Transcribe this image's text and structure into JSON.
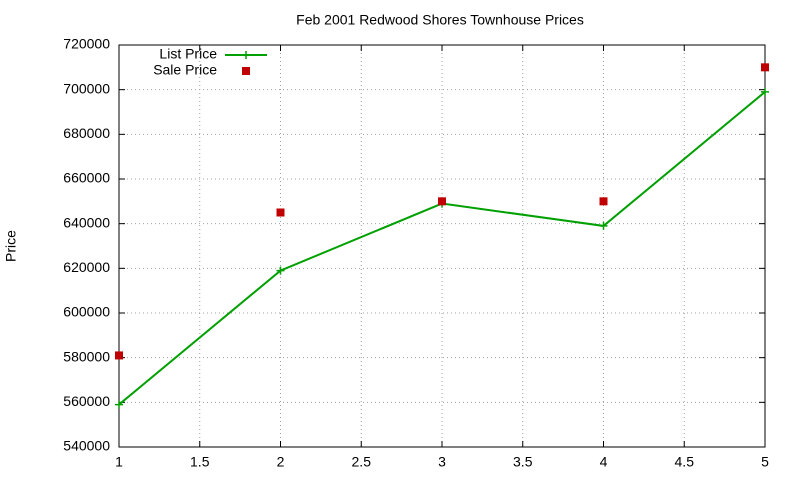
{
  "chart_data": {
    "type": "line",
    "title": "Feb 2001 Redwood Shores Townhouse Prices",
    "y_label": "Price",
    "x": [
      1,
      2,
      3,
      4,
      5
    ],
    "series": [
      {
        "name": "List Price",
        "color": "#00a000",
        "mode": "lines+markers",
        "marker": "plus",
        "values": [
          559000,
          619000,
          649000,
          639000,
          699000
        ]
      },
      {
        "name": "Sale Price",
        "color": "#c00000",
        "mode": "markers",
        "marker": "square",
        "values": [
          581000,
          645000,
          650000,
          650000,
          710000
        ]
      }
    ],
    "xlim": [
      1,
      5
    ],
    "xticks": [
      1,
      1.5,
      2,
      2.5,
      3,
      3.5,
      4,
      4.5,
      5
    ],
    "ylim": [
      540000,
      720000
    ],
    "yticks": [
      540000,
      560000,
      580000,
      600000,
      620000,
      640000,
      660000,
      680000,
      700000,
      720000
    ],
    "grid": true,
    "legend_position": "top-left"
  }
}
